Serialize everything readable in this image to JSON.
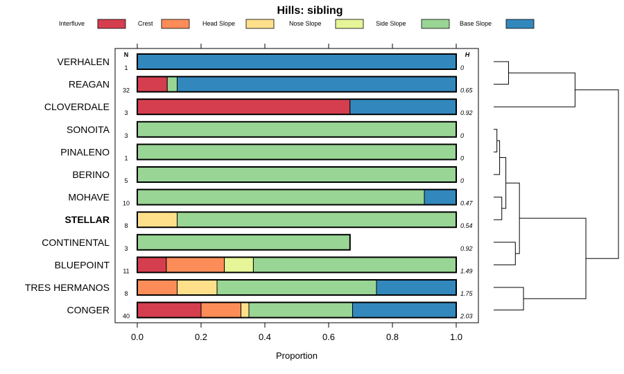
{
  "chart_data": {
    "type": "bar",
    "stacked": true,
    "orientation": "horizontal",
    "title": "Hills: sibling",
    "xlabel": "Proportion",
    "ylabel": "",
    "xlim": [
      0,
      1
    ],
    "x_ticks": [
      0,
      0.2,
      0.4,
      0.6,
      0.8,
      1
    ],
    "x_tick_labels": [
      "0.0",
      "0.2",
      "0.4",
      "0.6",
      "0.8",
      "1.0"
    ],
    "n_header": "N",
    "h_header": "H",
    "legend_position": "top",
    "legend": [
      {
        "name": "Interfluve",
        "color": "#D53E4F"
      },
      {
        "name": "Crest",
        "color": "#FC8D59"
      },
      {
        "name": "Head Slope",
        "color": "#FEE08B"
      },
      {
        "name": "Nose Slope",
        "color": "#E6F598"
      },
      {
        "name": "Side Slope",
        "color": "#99D594"
      },
      {
        "name": "Base Slope",
        "color": "#3288BD"
      }
    ],
    "categories": [
      "VERHALEN",
      "REAGAN",
      "CLOVERDALE",
      "SONOITA",
      "PINALENO",
      "BERINO",
      "MOHAVE",
      "STELLAR",
      "CONTINENTAL",
      "BLUEPOINT",
      "TRES HERMANOS",
      "CONGER"
    ],
    "highlight": "STELLAR",
    "n": [
      "1",
      "32",
      "3",
      "3",
      "1",
      "5",
      "10",
      "8",
      "3",
      "11",
      "8",
      "40"
    ],
    "h": [
      "0",
      "0.65",
      "0.92",
      "0",
      "0",
      "0",
      "0.47",
      "0.54",
      "0.92",
      "1.49",
      "1.75",
      "2.03"
    ],
    "series": [
      {
        "name": "Interfluve",
        "values": [
          0,
          0.094,
          0.667,
          0,
          0,
          0,
          0,
          0,
          0,
          0.091,
          0,
          0.2
        ]
      },
      {
        "name": "Crest",
        "values": [
          0,
          0,
          0,
          0,
          0,
          0,
          0,
          0,
          0,
          0.182,
          0.125,
          0.125
        ]
      },
      {
        "name": "Head Slope",
        "values": [
          0,
          0,
          0,
          0,
          0,
          0,
          0,
          0.125,
          0,
          0,
          0.125,
          0.025
        ]
      },
      {
        "name": "Nose Slope",
        "values": [
          0,
          0,
          0,
          0,
          0,
          0,
          0,
          0,
          0,
          0.091,
          0,
          0
        ]
      },
      {
        "name": "Side Slope",
        "values": [
          0,
          0.031,
          0,
          1,
          1,
          1,
          0.9,
          0.875,
          0.667,
          0.636,
          0.5,
          0.325
        ]
      },
      {
        "name": "Base Slope",
        "values": [
          1,
          0.875,
          0.333,
          0,
          0,
          0,
          0.1,
          0,
          0,
          0,
          0.25,
          0.325
        ]
      }
    ],
    "dendrogram": {
      "merges": [
        {
          "a": 3,
          "b": 4,
          "height": 0.12
        },
        {
          "a": -1,
          "b": 5,
          "height": 0.22
        },
        {
          "a": 6,
          "b": 7,
          "height": 0.3
        },
        {
          "a": -2,
          "b": -3,
          "height": 0.45
        },
        {
          "a": 0,
          "b": 1,
          "height": 0.55
        },
        {
          "a": 8,
          "b": 9,
          "height": 0.8
        },
        {
          "a": -4,
          "b": -6,
          "height": 0.95
        },
        {
          "a": 10,
          "b": 11,
          "height": 1.1
        },
        {
          "a": -5,
          "b": 2,
          "height": 3.0
        },
        {
          "a": -7,
          "b": -8,
          "height": 3.4
        },
        {
          "a": -9,
          "b": -10,
          "height": 4.6
        }
      ]
    }
  }
}
